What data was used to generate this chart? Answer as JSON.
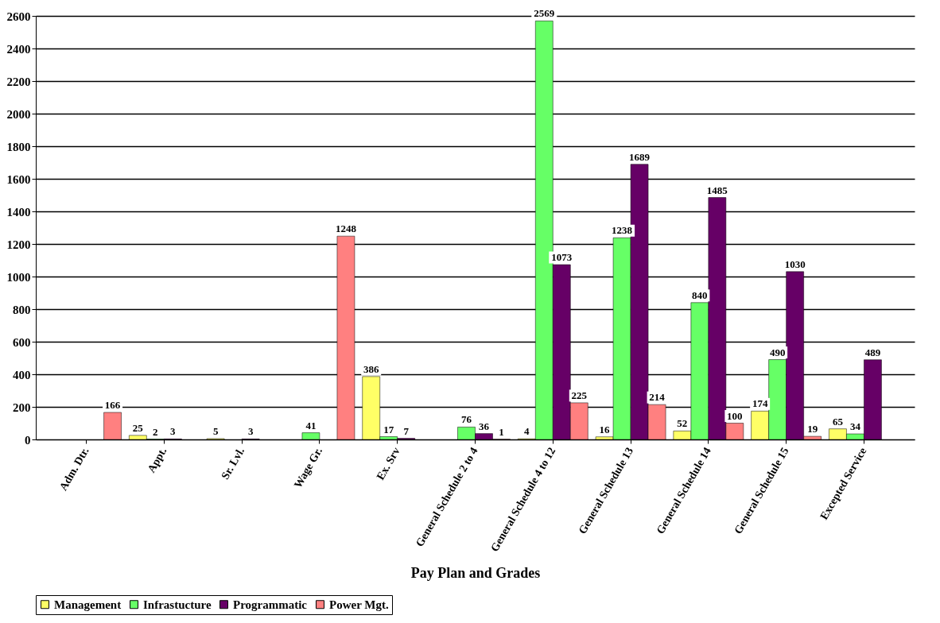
{
  "chart_data": {
    "type": "bar",
    "xlabel": "Pay Plan and Grades",
    "categories": [
      "Adm. Dtr.",
      "Appt.",
      "Sr. Lvl.",
      "Wage Gr.",
      "Ex. Srv",
      "General Schedule 2 to 4",
      "General Schedule 4 to 12",
      "General Schedule 13",
      "General Schedule 14",
      "General Schedule 15",
      "Excepted Service"
    ],
    "series": [
      {
        "name": "Management",
        "color": "#ffff66",
        "values": [
          null,
          25,
          5,
          null,
          386,
          null,
          4,
          16,
          52,
          174,
          65
        ]
      },
      {
        "name": "Infrastucture",
        "color": "#66ff66",
        "values": [
          null,
          2,
          null,
          41,
          17,
          76,
          2569,
          1238,
          840,
          490,
          34
        ]
      },
      {
        "name": "Programmatic",
        "color": "#660066",
        "values": [
          null,
          3,
          3,
          null,
          7,
          36,
          1073,
          1689,
          1485,
          1030,
          489
        ]
      },
      {
        "name": "Power Mgt.",
        "color": "#ff8080",
        "values": [
          166,
          null,
          null,
          1248,
          null,
          1,
          225,
          214,
          100,
          19,
          null
        ]
      }
    ],
    "ylim": [
      0,
      2600
    ],
    "yticks": [
      0,
      200,
      400,
      600,
      800,
      1000,
      1200,
      1400,
      1600,
      1800,
      2000,
      2200,
      2400,
      2600
    ],
    "grid": "y",
    "legend": "bottom",
    "data_labels": true
  }
}
